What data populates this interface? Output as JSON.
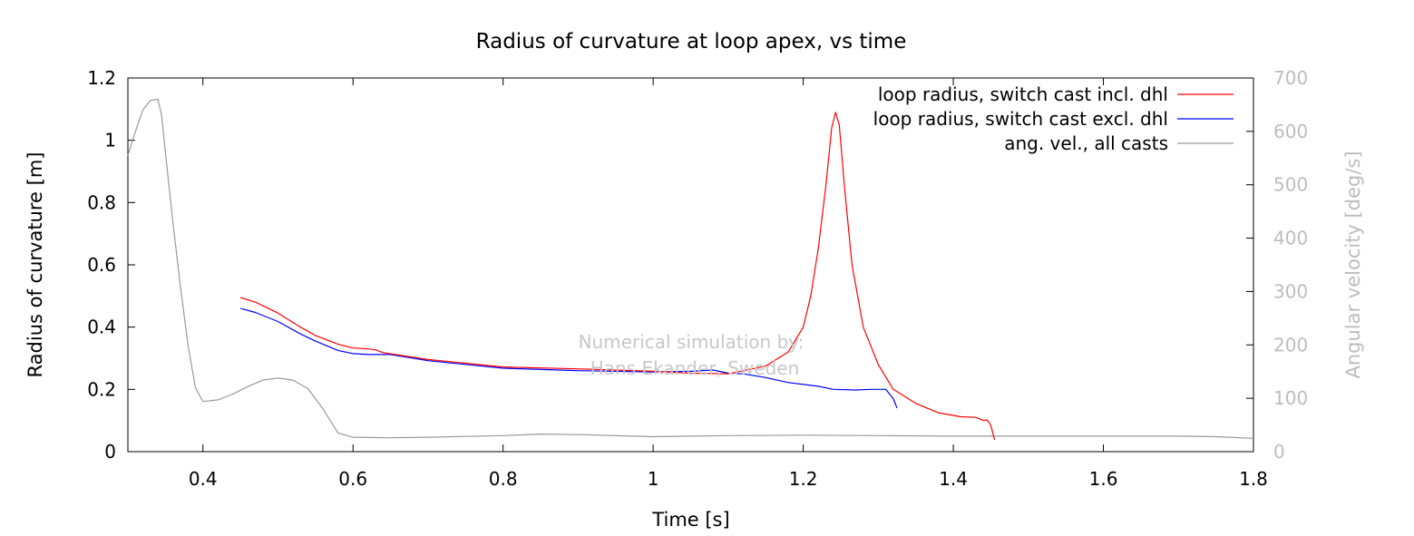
{
  "chart_data": {
    "type": "line",
    "title": "Radius of curvature at loop apex, vs time",
    "xlabel": "Time [s]",
    "ylabel": "Radius of curvature [m]",
    "y2label": "Angular velocity [deg/s]",
    "xlim": [
      0.3,
      1.8
    ],
    "ylim": [
      0,
      1.2
    ],
    "y2lim": [
      0,
      700
    ],
    "xticks": [
      "0.4",
      "0.6",
      "0.8",
      "1",
      "1.2",
      "1.4",
      "1.6",
      "1.8"
    ],
    "yticks": [
      "0",
      "0.2",
      "0.4",
      "0.6",
      "0.8",
      "1",
      "1.2"
    ],
    "y2ticks": [
      "0",
      "100",
      "200",
      "300",
      "400",
      "500",
      "600",
      "700"
    ],
    "grid": false,
    "legend_position": "top-right",
    "watermark": [
      "Numerical simulation by:",
      "Hans Ekander, Sweden"
    ],
    "colors": {
      "red": "#ff0000",
      "blue": "#0000ff",
      "grey": "#999999"
    },
    "series": [
      {
        "name": "loop radius, switch cast incl. dhl",
        "color": "#ff0000",
        "axis": "y",
        "points": [
          [
            0.45,
            0.495
          ],
          [
            0.47,
            0.48
          ],
          [
            0.5,
            0.445
          ],
          [
            0.53,
            0.4
          ],
          [
            0.55,
            0.373
          ],
          [
            0.58,
            0.345
          ],
          [
            0.6,
            0.333
          ],
          [
            0.62,
            0.33
          ],
          [
            0.63,
            0.327
          ],
          [
            0.64,
            0.318
          ],
          [
            0.7,
            0.296
          ],
          [
            0.8,
            0.272
          ],
          [
            0.9,
            0.266
          ],
          [
            1.0,
            0.258
          ],
          [
            1.05,
            0.252
          ],
          [
            1.1,
            0.25
          ],
          [
            1.15,
            0.275
          ],
          [
            1.18,
            0.32
          ],
          [
            1.2,
            0.4
          ],
          [
            1.21,
            0.5
          ],
          [
            1.22,
            0.65
          ],
          [
            1.23,
            0.85
          ],
          [
            1.238,
            1.04
          ],
          [
            1.243,
            1.09
          ],
          [
            1.248,
            1.05
          ],
          [
            1.255,
            0.85
          ],
          [
            1.265,
            0.6
          ],
          [
            1.28,
            0.4
          ],
          [
            1.3,
            0.28
          ],
          [
            1.32,
            0.2
          ],
          [
            1.35,
            0.155
          ],
          [
            1.38,
            0.125
          ],
          [
            1.41,
            0.112
          ],
          [
            1.43,
            0.11
          ],
          [
            1.44,
            0.1
          ],
          [
            1.445,
            0.102
          ],
          [
            1.45,
            0.085
          ],
          [
            1.455,
            0.038
          ]
        ]
      },
      {
        "name": "loop radius, switch cast excl. dhl",
        "color": "#0000ff",
        "axis": "y",
        "points": [
          [
            0.45,
            0.46
          ],
          [
            0.47,
            0.447
          ],
          [
            0.5,
            0.418
          ],
          [
            0.53,
            0.378
          ],
          [
            0.55,
            0.355
          ],
          [
            0.58,
            0.325
          ],
          [
            0.6,
            0.315
          ],
          [
            0.62,
            0.312
          ],
          [
            0.65,
            0.312
          ],
          [
            0.7,
            0.292
          ],
          [
            0.8,
            0.268
          ],
          [
            0.9,
            0.26
          ],
          [
            1.0,
            0.256
          ],
          [
            1.05,
            0.258
          ],
          [
            1.08,
            0.262
          ],
          [
            1.1,
            0.252
          ],
          [
            1.12,
            0.25
          ],
          [
            1.15,
            0.238
          ],
          [
            1.18,
            0.222
          ],
          [
            1.22,
            0.21
          ],
          [
            1.24,
            0.2
          ],
          [
            1.27,
            0.198
          ],
          [
            1.29,
            0.2
          ],
          [
            1.31,
            0.2
          ],
          [
            1.32,
            0.17
          ],
          [
            1.325,
            0.14
          ]
        ]
      },
      {
        "name": "ang. vel., all casts",
        "color": "#999999",
        "axis": "y2",
        "points": [
          [
            0.3,
            555
          ],
          [
            0.31,
            600
          ],
          [
            0.32,
            640
          ],
          [
            0.33,
            658
          ],
          [
            0.34,
            660
          ],
          [
            0.345,
            630
          ],
          [
            0.35,
            560
          ],
          [
            0.36,
            430
          ],
          [
            0.37,
            310
          ],
          [
            0.38,
            200
          ],
          [
            0.39,
            120
          ],
          [
            0.4,
            94
          ],
          [
            0.42,
            97
          ],
          [
            0.44,
            108
          ],
          [
            0.46,
            122
          ],
          [
            0.48,
            134
          ],
          [
            0.5,
            138
          ],
          [
            0.52,
            134
          ],
          [
            0.54,
            118
          ],
          [
            0.56,
            80
          ],
          [
            0.58,
            35
          ],
          [
            0.6,
            27
          ],
          [
            0.65,
            26
          ],
          [
            0.7,
            27
          ],
          [
            0.8,
            30
          ],
          [
            0.85,
            33
          ],
          [
            0.9,
            32
          ],
          [
            1.0,
            28
          ],
          [
            1.1,
            30
          ],
          [
            1.2,
            31
          ],
          [
            1.3,
            30
          ],
          [
            1.4,
            29
          ],
          [
            1.5,
            29
          ],
          [
            1.6,
            29
          ],
          [
            1.7,
            29
          ],
          [
            1.75,
            28
          ],
          [
            1.8,
            25
          ]
        ]
      }
    ]
  }
}
